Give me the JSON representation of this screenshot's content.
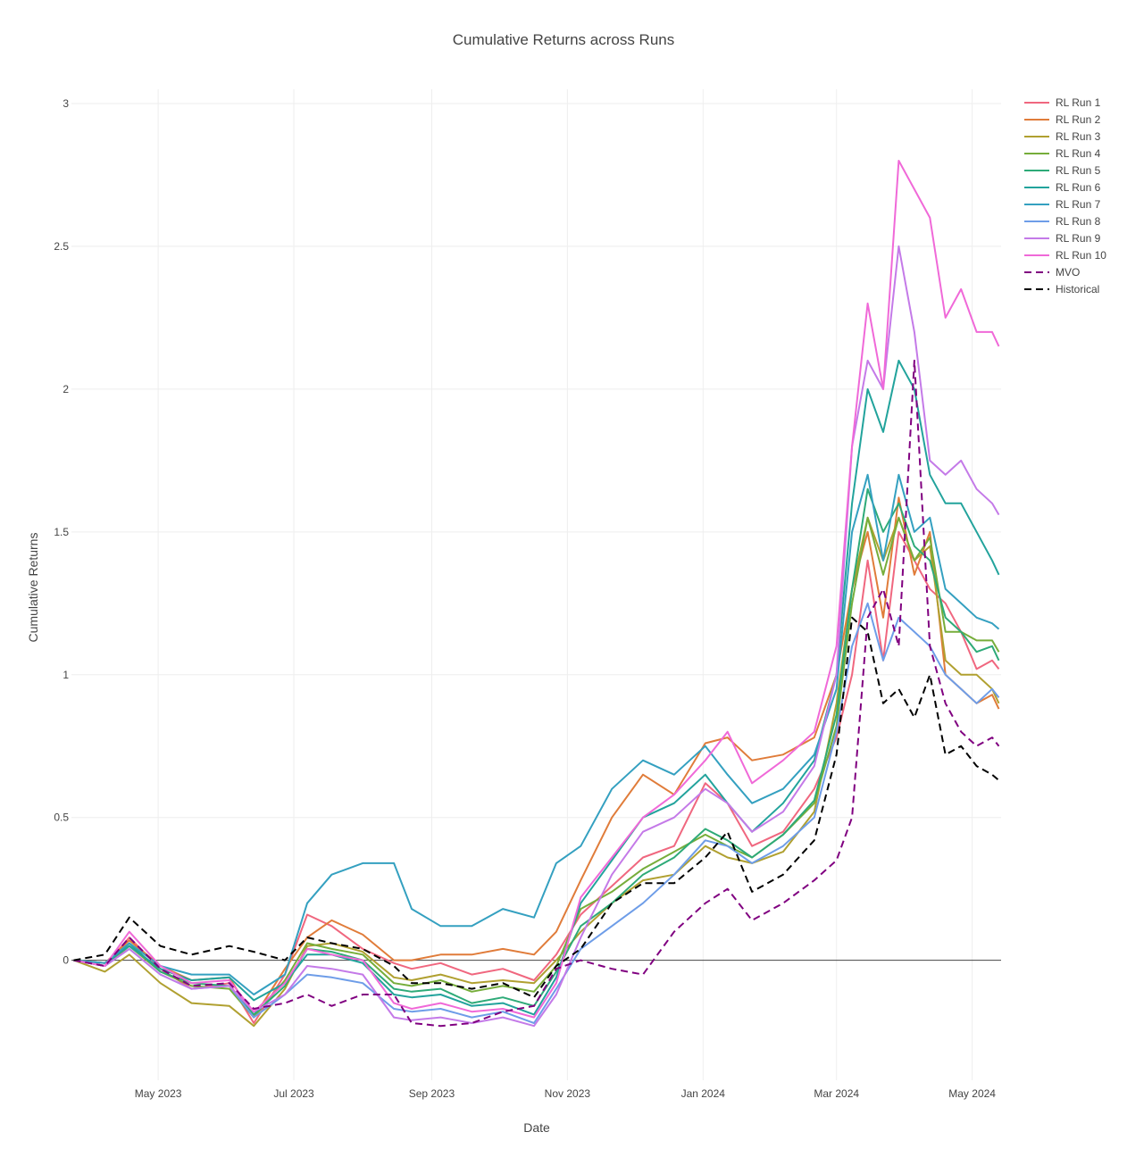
{
  "chart_data": {
    "type": "line",
    "title": "Cumulative Returns across Runs",
    "xlabel": "Date",
    "ylabel": "Cumulative Returns",
    "xlim": [
      "2023-03-23",
      "2024-05-14"
    ],
    "ylim": [
      -0.42,
      3.05
    ],
    "grid": true,
    "legend": "top-right",
    "x_ticks": [
      {
        "date": "2023-05-01",
        "label": "May 2023"
      },
      {
        "date": "2023-07-01",
        "label": "Jul 2023"
      },
      {
        "date": "2023-09-01",
        "label": "Sep 2023"
      },
      {
        "date": "2023-11-01",
        "label": "Nov 2023"
      },
      {
        "date": "2024-01-01",
        "label": "Jan 2024"
      },
      {
        "date": "2024-03-01",
        "label": "Mar 2024"
      },
      {
        "date": "2024-05-01",
        "label": "May 2024"
      }
    ],
    "y_ticks": [
      {
        "value": 0,
        "label": "0"
      },
      {
        "value": 0.5,
        "label": "0.5"
      },
      {
        "value": 1,
        "label": "1"
      },
      {
        "value": 1.5,
        "label": "1.5"
      },
      {
        "value": 2,
        "label": "2"
      },
      {
        "value": 2.5,
        "label": "2.5"
      },
      {
        "value": 3,
        "label": "3"
      }
    ],
    "x": [
      "2023-03-24",
      "2023-04-07",
      "2023-04-18",
      "2023-05-02",
      "2023-05-16",
      "2023-06-02",
      "2023-06-13",
      "2023-06-27",
      "2023-07-07",
      "2023-07-18",
      "2023-08-01",
      "2023-08-15",
      "2023-08-23",
      "2023-09-05",
      "2023-09-19",
      "2023-10-03",
      "2023-10-17",
      "2023-10-27",
      "2023-11-07",
      "2023-11-21",
      "2023-12-05",
      "2023-12-19",
      "2024-01-02",
      "2024-01-12",
      "2024-01-23",
      "2024-02-06",
      "2024-02-20",
      "2024-03-01",
      "2024-03-08",
      "2024-03-15",
      "2024-03-22",
      "2024-03-29",
      "2024-04-05",
      "2024-04-12",
      "2024-04-19",
      "2024-04-26",
      "2024-05-03",
      "2024-05-10",
      "2024-05-13"
    ],
    "series": [
      {
        "name": "RL Run 1",
        "color": "#f0677f",
        "dash": "solid",
        "values": [
          0,
          -0.02,
          0.08,
          -0.03,
          -0.1,
          -0.08,
          -0.22,
          -0.05,
          0.16,
          0.12,
          0.04,
          -0.01,
          -0.03,
          -0.01,
          -0.05,
          -0.03,
          -0.07,
          0.02,
          0.16,
          0.26,
          0.36,
          0.4,
          0.62,
          0.55,
          0.4,
          0.45,
          0.6,
          0.78,
          1.0,
          1.4,
          1.05,
          1.5,
          1.4,
          1.3,
          1.25,
          1.15,
          1.02,
          1.05,
          1.02
        ]
      },
      {
        "name": "RL Run 2",
        "color": "#e07c3a",
        "dash": "solid",
        "values": [
          0,
          -0.01,
          0.07,
          -0.02,
          -0.07,
          -0.06,
          -0.2,
          -0.03,
          0.08,
          0.14,
          0.09,
          0.0,
          0.0,
          0.02,
          0.02,
          0.04,
          0.02,
          0.1,
          0.28,
          0.5,
          0.65,
          0.58,
          0.76,
          0.78,
          0.7,
          0.72,
          0.78,
          1.0,
          1.3,
          1.5,
          1.2,
          1.62,
          1.35,
          1.5,
          1.0,
          0.95,
          0.9,
          0.93,
          0.88
        ]
      },
      {
        "name": "RL Run 3",
        "color": "#b0a030",
        "dash": "solid",
        "values": [
          0,
          -0.04,
          0.02,
          -0.08,
          -0.15,
          -0.16,
          -0.23,
          -0.1,
          0.05,
          0.06,
          0.03,
          -0.06,
          -0.07,
          -0.05,
          -0.08,
          -0.07,
          -0.08,
          0.0,
          0.1,
          0.2,
          0.28,
          0.3,
          0.4,
          0.36,
          0.34,
          0.38,
          0.52,
          0.9,
          1.3,
          1.55,
          1.4,
          1.55,
          1.4,
          1.45,
          1.05,
          1.0,
          1.0,
          0.95,
          0.9
        ]
      },
      {
        "name": "RL Run 4",
        "color": "#76ad3a",
        "dash": "solid",
        "values": [
          0,
          -0.02,
          0.05,
          -0.04,
          -0.09,
          -0.1,
          -0.2,
          -0.07,
          0.06,
          0.04,
          0.02,
          -0.08,
          -0.09,
          -0.07,
          -0.11,
          -0.09,
          -0.11,
          -0.02,
          0.18,
          0.24,
          0.32,
          0.38,
          0.44,
          0.4,
          0.36,
          0.44,
          0.55,
          0.82,
          1.25,
          1.55,
          1.35,
          1.55,
          1.4,
          1.48,
          1.15,
          1.15,
          1.12,
          1.12,
          1.08
        ]
      },
      {
        "name": "RL Run 5",
        "color": "#2eaa78",
        "dash": "solid",
        "values": [
          0,
          -0.02,
          0.06,
          -0.04,
          -0.08,
          -0.09,
          -0.19,
          -0.09,
          0.04,
          0.03,
          0.0,
          -0.1,
          -0.11,
          -0.1,
          -0.15,
          -0.13,
          -0.16,
          -0.04,
          0.12,
          0.2,
          0.3,
          0.36,
          0.46,
          0.42,
          0.36,
          0.44,
          0.56,
          0.86,
          1.3,
          1.65,
          1.5,
          1.6,
          1.45,
          1.4,
          1.2,
          1.15,
          1.08,
          1.1,
          1.05
        ]
      },
      {
        "name": "RL Run 6",
        "color": "#22a39c",
        "dash": "solid",
        "values": [
          0,
          -0.01,
          0.05,
          -0.03,
          -0.07,
          -0.06,
          -0.14,
          -0.08,
          0.02,
          0.02,
          -0.01,
          -0.12,
          -0.13,
          -0.12,
          -0.16,
          -0.15,
          -0.19,
          -0.06,
          0.2,
          0.35,
          0.5,
          0.55,
          0.65,
          0.55,
          0.45,
          0.55,
          0.7,
          1.0,
          1.6,
          2.0,
          1.85,
          2.1,
          2.0,
          1.7,
          1.6,
          1.6,
          1.5,
          1.4,
          1.35
        ]
      },
      {
        "name": "RL Run 7",
        "color": "#34a0c0",
        "dash": "solid",
        "values": [
          0,
          -0.01,
          0.06,
          -0.02,
          -0.05,
          -0.05,
          -0.12,
          -0.05,
          0.2,
          0.3,
          0.34,
          0.34,
          0.18,
          0.12,
          0.12,
          0.18,
          0.15,
          0.34,
          0.4,
          0.6,
          0.7,
          0.65,
          0.75,
          0.65,
          0.55,
          0.6,
          0.72,
          0.95,
          1.5,
          1.7,
          1.4,
          1.7,
          1.5,
          1.55,
          1.3,
          1.25,
          1.2,
          1.18,
          1.16
        ]
      },
      {
        "name": "RL Run 8",
        "color": "#6e9de8",
        "dash": "solid",
        "values": [
          0,
          -0.02,
          0.04,
          -0.05,
          -0.1,
          -0.09,
          -0.2,
          -0.12,
          -0.05,
          -0.06,
          -0.08,
          -0.17,
          -0.18,
          -0.17,
          -0.2,
          -0.18,
          -0.22,
          -0.1,
          0.04,
          0.12,
          0.2,
          0.3,
          0.42,
          0.4,
          0.34,
          0.4,
          0.5,
          0.8,
          1.1,
          1.25,
          1.05,
          1.2,
          1.15,
          1.1,
          1.0,
          0.95,
          0.9,
          0.95,
          0.92
        ]
      },
      {
        "name": "RL Run 9",
        "color": "#c47ae8",
        "dash": "solid",
        "values": [
          0,
          -0.02,
          0.04,
          -0.05,
          -0.1,
          -0.09,
          -0.18,
          -0.12,
          -0.02,
          -0.03,
          -0.05,
          -0.2,
          -0.21,
          -0.2,
          -0.22,
          -0.2,
          -0.23,
          -0.12,
          0.08,
          0.3,
          0.45,
          0.5,
          0.6,
          0.55,
          0.45,
          0.52,
          0.68,
          1.0,
          1.8,
          2.1,
          2.0,
          2.5,
          2.2,
          1.75,
          1.7,
          1.75,
          1.65,
          1.6,
          1.56
        ]
      },
      {
        "name": "RL Run 10",
        "color": "#f069d8",
        "dash": "solid",
        "values": [
          0,
          -0.02,
          0.1,
          -0.02,
          -0.08,
          -0.07,
          -0.18,
          -0.08,
          0.04,
          0.02,
          0.0,
          -0.15,
          -0.17,
          -0.15,
          -0.18,
          -0.17,
          -0.2,
          -0.08,
          0.22,
          0.36,
          0.5,
          0.58,
          0.7,
          0.8,
          0.62,
          0.7,
          0.8,
          1.1,
          1.8,
          2.3,
          2.0,
          2.8,
          2.7,
          2.6,
          2.25,
          2.35,
          2.2,
          2.2,
          2.15
        ]
      },
      {
        "name": "MVO",
        "color": "#800080",
        "dash": "dash",
        "values": [
          0,
          -0.02,
          0.08,
          -0.03,
          -0.09,
          -0.08,
          -0.17,
          -0.15,
          -0.12,
          -0.16,
          -0.12,
          -0.12,
          -0.22,
          -0.23,
          -0.22,
          -0.18,
          -0.16,
          -0.03,
          0.0,
          -0.03,
          -0.05,
          0.1,
          0.2,
          0.25,
          0.14,
          0.2,
          0.28,
          0.35,
          0.5,
          1.2,
          1.3,
          1.1,
          2.1,
          1.1,
          0.9,
          0.8,
          0.75,
          0.78,
          0.75
        ]
      },
      {
        "name": "Historical",
        "color": "#000000",
        "dash": "dash",
        "values": [
          0,
          0.02,
          0.15,
          0.05,
          0.02,
          0.05,
          0.03,
          0.0,
          0.08,
          0.06,
          0.04,
          -0.02,
          -0.08,
          -0.08,
          -0.1,
          -0.08,
          -0.13,
          -0.02,
          0.04,
          0.2,
          0.27,
          0.27,
          0.36,
          0.45,
          0.24,
          0.3,
          0.42,
          0.72,
          1.2,
          1.15,
          0.9,
          0.95,
          0.85,
          1.0,
          0.72,
          0.75,
          0.68,
          0.65,
          0.63
        ]
      }
    ]
  }
}
